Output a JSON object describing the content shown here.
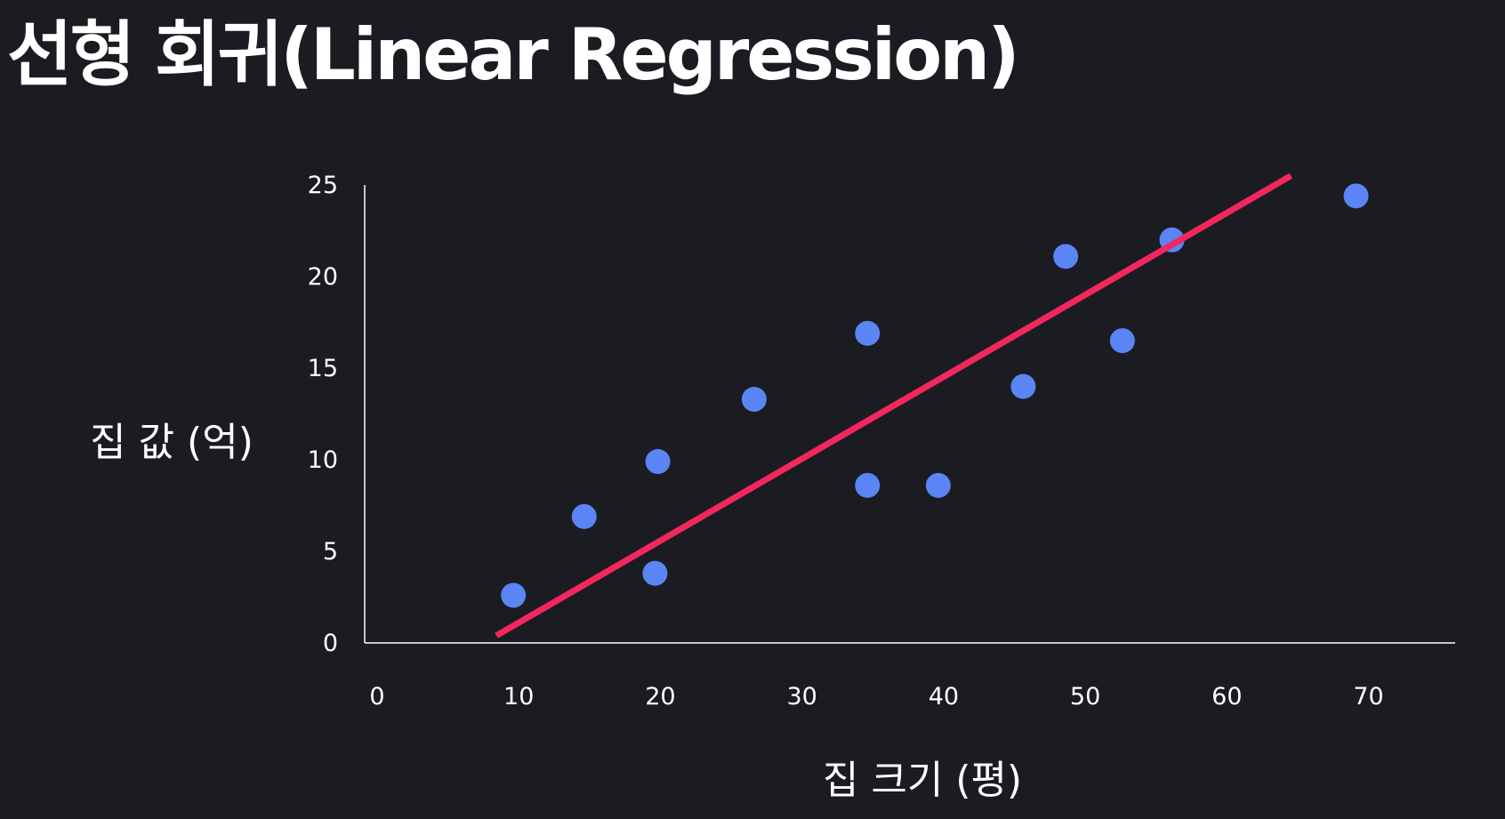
{
  "title": "선형 회귀(Linear Regression)",
  "chart_data": {
    "type": "scatter",
    "title": "선형 회귀(Linear Regression)",
    "xlabel": "집 크기 (평)",
    "ylabel": "집 값 (억)",
    "xlim": [
      0,
      77
    ],
    "ylim": [
      0,
      25
    ],
    "x_ticks": [
      0,
      10,
      20,
      30,
      40,
      50,
      60,
      70
    ],
    "y_ticks": [
      0,
      5,
      10,
      15,
      20,
      25
    ],
    "grid": false,
    "colors": {
      "background": "#1b1c21",
      "points": "#5b84f5",
      "line": "#f2275d",
      "axes": "#ffffff",
      "text": "#ffffff"
    },
    "series": [
      {
        "type": "scatter",
        "x": [
          10.5,
          15.5,
          20.5,
          20.7,
          27.5,
          35.5,
          35.5,
          40.5,
          46.5,
          49.5,
          53.5,
          57,
          70
        ],
        "y": [
          2.6,
          6.9,
          3.8,
          9.9,
          13.3,
          16.9,
          8.6,
          8.6,
          14.0,
          21.1,
          16.5,
          22.0,
          24.4
        ]
      },
      {
        "type": "line",
        "x": [
          9.3,
          65.4
        ],
        "y": [
          0.4,
          25.5
        ]
      }
    ]
  }
}
